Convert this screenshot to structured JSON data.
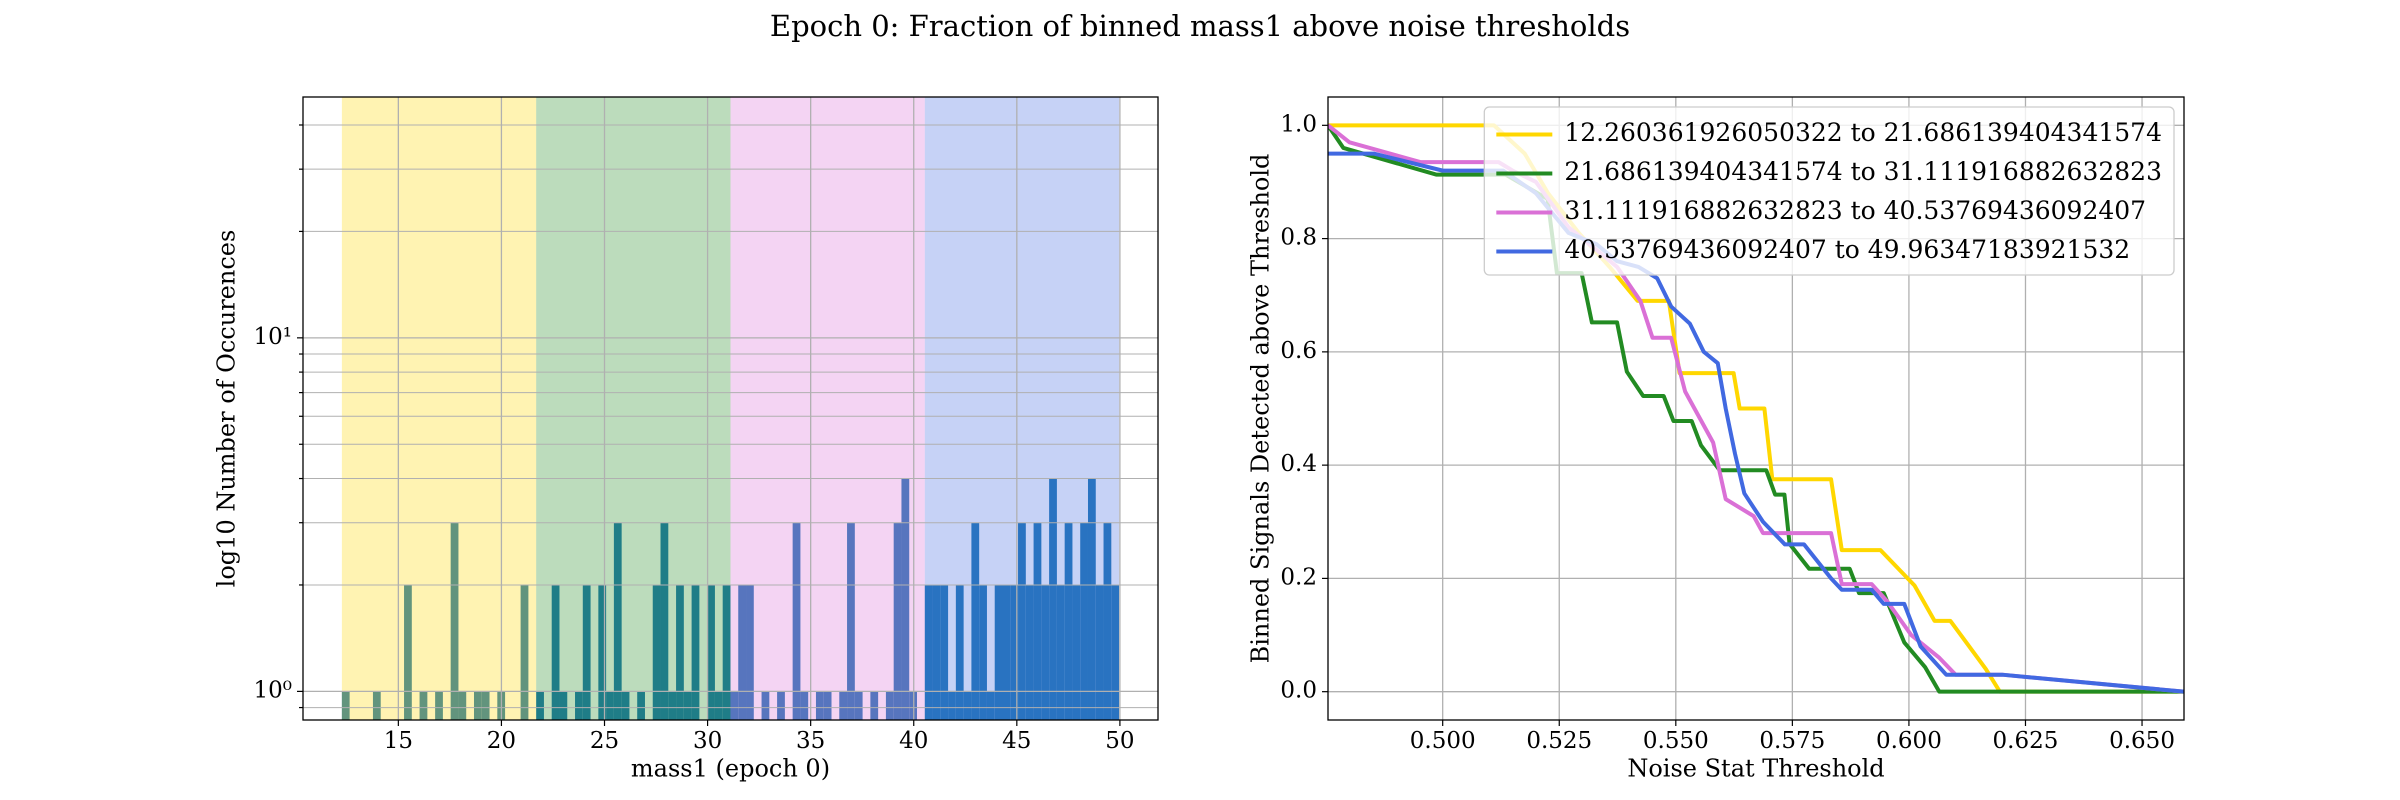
{
  "title": "Epoch 0: Fraction of binned mass1 above noise thresholds",
  "chart_data": [
    {
      "type": "histogram",
      "xlabel": "mass1 (epoch 0)",
      "ylabel": "log10 Number of Occurences",
      "bins": [
        12.26,
        12.637,
        13.014,
        13.391,
        13.768,
        14.145,
        14.522,
        14.899,
        15.276,
        15.653,
        16.03,
        16.407,
        16.784,
        17.161,
        17.538,
        17.915,
        18.292,
        18.669,
        19.046,
        19.423,
        19.8,
        20.177,
        20.554,
        20.931,
        21.308,
        21.685,
        22.062,
        22.439,
        22.816,
        23.193,
        23.57,
        23.947,
        24.324,
        24.701,
        25.078,
        25.455,
        25.832,
        26.209,
        26.586,
        26.963,
        27.34,
        27.717,
        28.094,
        28.471,
        28.848,
        29.225,
        29.602,
        29.979,
        30.356,
        30.733,
        31.11,
        31.487,
        31.864,
        32.241,
        32.618,
        32.995,
        33.372,
        33.749,
        34.126,
        34.503,
        34.88,
        35.257,
        35.634,
        36.011,
        36.388,
        36.765,
        37.142,
        37.519,
        37.896,
        38.273,
        38.65,
        39.027,
        39.404,
        39.781,
        40.158,
        40.535,
        40.912,
        41.289,
        41.666,
        42.043,
        42.42,
        42.797,
        43.174,
        43.551,
        43.928,
        44.305,
        44.682,
        45.059,
        45.436,
        45.813,
        46.19,
        46.567,
        46.944,
        47.321,
        47.698,
        48.075,
        48.452,
        48.829,
        49.206,
        49.583,
        49.96
      ],
      "values": [
        1,
        0,
        0,
        0,
        1,
        0,
        0,
        0,
        2,
        0,
        1,
        0,
        1,
        0,
        3,
        1,
        0,
        1,
        1,
        0,
        1,
        0,
        0,
        2,
        0,
        1,
        0,
        2,
        1,
        0,
        1,
        2,
        0,
        2,
        1,
        3,
        1,
        0,
        1,
        0,
        2,
        3,
        1,
        2,
        1,
        2,
        0,
        2,
        1,
        2,
        1,
        2,
        2,
        0,
        1,
        0,
        1,
        0,
        3,
        1,
        0,
        1,
        1,
        0,
        1,
        3,
        1,
        0,
        1,
        0,
        1,
        3,
        4,
        1,
        0,
        2,
        2,
        2,
        1,
        2,
        1,
        3,
        2,
        1,
        2,
        2,
        2,
        3,
        2,
        3,
        2,
        4,
        2,
        3,
        2,
        3,
        4,
        2,
        3,
        2
      ],
      "color": "#1f77b4",
      "spans": [
        {
          "start": 12.260361926050322,
          "end": 21.686139404341574,
          "color": "#ffd700"
        },
        {
          "start": 21.686139404341574,
          "end": 31.111916882632823,
          "color": "#228b22"
        },
        {
          "start": 31.111916882632823,
          "end": 40.53769436092407,
          "color": "#da70d6"
        },
        {
          "start": 40.53769436092407,
          "end": 49.96347183921532,
          "color": "#4169e1"
        }
      ],
      "span_alpha": 0.3,
      "xlim": [
        10.375,
        51.848
      ],
      "xticks": [
        15,
        20,
        25,
        30,
        35,
        40,
        45,
        50
      ],
      "ylog": true,
      "ylim": [
        0.83,
        48
      ],
      "yticks": [
        {
          "value": 1,
          "label": "10⁰"
        },
        {
          "value": 10,
          "label": "10¹"
        }
      ],
      "yminorticks": [
        0.9,
        2,
        3,
        4,
        5,
        6,
        7,
        8,
        9,
        20,
        30,
        40
      ],
      "grid": true
    },
    {
      "type": "line",
      "xlabel": "Noise Stat Threshold",
      "ylabel": "Binned Signals Detected above Threshold",
      "series": [
        {
          "name": "12.260361926050322 to 21.686139404341574",
          "color": "#ffd700",
          "x": [
            0.4754,
            0.511,
            0.5176,
            0.5226,
            0.5292,
            0.5358,
            0.5418,
            0.5485,
            0.5508,
            0.5624,
            0.5637,
            0.569,
            0.5707,
            0.5833,
            0.5856,
            0.5939,
            0.6012,
            0.6055,
            0.6089,
            0.6165,
            0.6195,
            0.659
          ],
          "values": [
            1,
            1,
            0.95,
            0.88,
            0.81,
            0.75,
            0.69,
            0.69,
            0.5625,
            0.5625,
            0.5,
            0.5,
            0.375,
            0.375,
            0.25,
            0.25,
            0.1875,
            0.125,
            0.125,
            0.04,
            0,
            0
          ]
        },
        {
          "name": "21.686139404341574 to 31.111916882632823",
          "color": "#228b22",
          "x": [
            0.4754,
            0.4787,
            0.4986,
            0.5135,
            0.5225,
            0.5245,
            0.5298,
            0.532,
            0.5374,
            0.5395,
            0.543,
            0.5474,
            0.5495,
            0.5534,
            0.5554,
            0.5594,
            0.5694,
            0.5713,
            0.5733,
            0.5744,
            0.5786,
            0.5873,
            0.5893,
            0.5946,
            0.599,
            0.6035,
            0.6065,
            0.659
          ],
          "values": [
            1,
            0.96,
            0.913,
            0.913,
            0.87,
            0.739,
            0.739,
            0.652,
            0.652,
            0.565,
            0.522,
            0.522,
            0.478,
            0.478,
            0.435,
            0.391,
            0.391,
            0.348,
            0.348,
            0.261,
            0.217,
            0.217,
            0.174,
            0.174,
            0.087,
            0.043,
            0,
            0
          ]
        },
        {
          "name": "31.111916882632823 to 40.53769436092407",
          "color": "#da70d6",
          "x": [
            0.4754,
            0.48,
            0.4953,
            0.512,
            0.515,
            0.52,
            0.527,
            0.533,
            0.5374,
            0.5424,
            0.545,
            0.549,
            0.552,
            0.556,
            0.558,
            0.5607,
            0.5667,
            0.5687,
            0.5833,
            0.5856,
            0.592,
            0.5953,
            0.6005,
            0.6065,
            0.61,
            0.62,
            0.659
          ],
          "values": [
            1,
            0.97,
            0.935,
            0.935,
            0.92,
            0.9,
            0.82,
            0.78,
            0.75,
            0.69,
            0.625,
            0.625,
            0.53,
            0.47,
            0.44,
            0.34,
            0.31,
            0.28,
            0.28,
            0.19,
            0.19,
            0.16,
            0.1,
            0.06,
            0.03,
            0.03,
            0
          ]
        },
        {
          "name": "40.53769436092407 to 49.96347183921532",
          "color": "#4169e1",
          "x": [
            0.4754,
            0.4853,
            0.5,
            0.513,
            0.52,
            0.527,
            0.533,
            0.5374,
            0.542,
            0.546,
            0.549,
            0.553,
            0.556,
            0.559,
            0.5607,
            0.5627,
            0.5647,
            0.5687,
            0.5734,
            0.5775,
            0.5833,
            0.5856,
            0.592,
            0.5946,
            0.599,
            0.6025,
            0.608,
            0.62,
            0.659
          ],
          "values": [
            0.95,
            0.95,
            0.92,
            0.92,
            0.88,
            0.81,
            0.79,
            0.76,
            0.75,
            0.73,
            0.68,
            0.65,
            0.6,
            0.58,
            0.5,
            0.42,
            0.35,
            0.3,
            0.26,
            0.26,
            0.2,
            0.18,
            0.18,
            0.155,
            0.155,
            0.08,
            0.03,
            0.03,
            0
          ]
        }
      ],
      "xlim": [
        0.4754,
        0.659
      ],
      "xticks": [
        {
          "value": 0.5,
          "label": "0.500"
        },
        0.525,
        {
          "value": 0.55,
          "label": "0.550"
        },
        0.575,
        {
          "value": 0.6,
          "label": "0.600"
        },
        0.625,
        {
          "value": 0.65,
          "label": "0.650"
        }
      ],
      "ylim": [
        -0.05,
        1.05
      ],
      "yticks": [
        {
          "value": 0,
          "label": "0.0"
        },
        0.2,
        0.4,
        0.6,
        0.8,
        {
          "value": 1,
          "label": "1.0"
        }
      ],
      "grid": true,
      "legend": "upper right"
    }
  ]
}
